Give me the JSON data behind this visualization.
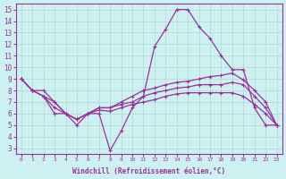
{
  "xlabel": "Windchill (Refroidissement éolien,°C)",
  "xlim": [
    -0.5,
    23.5
  ],
  "ylim": [
    2.5,
    15.5
  ],
  "yticks": [
    3,
    4,
    5,
    6,
    7,
    8,
    9,
    10,
    11,
    12,
    13,
    14,
    15
  ],
  "xticks": [
    0,
    1,
    2,
    3,
    4,
    5,
    6,
    7,
    8,
    9,
    10,
    11,
    12,
    13,
    14,
    15,
    16,
    17,
    18,
    19,
    20,
    21,
    22,
    23
  ],
  "background_color": "#cdf0f0",
  "grid_color": "#b0d8d0",
  "line_color": "#993399",
  "series": {
    "line1": [
      9.0,
      8.0,
      8.0,
      7.0,
      6.0,
      5.5,
      6.0,
      6.0,
      2.8,
      4.5,
      6.5,
      7.5,
      11.8,
      13.3,
      15.0,
      15.0,
      13.5,
      12.5,
      11.0,
      9.8,
      9.8,
      6.5,
      5.0,
      5.0
    ],
    "line2": [
      9.0,
      8.0,
      7.5,
      7.0,
      6.0,
      5.5,
      6.0,
      6.5,
      6.5,
      7.0,
      7.5,
      8.0,
      8.2,
      8.5,
      8.7,
      8.8,
      9.0,
      9.2,
      9.3,
      9.5,
      8.9,
      8.0,
      7.0,
      5.0
    ],
    "line3": [
      9.0,
      8.0,
      7.5,
      6.5,
      6.0,
      5.5,
      6.0,
      6.5,
      6.5,
      6.8,
      7.0,
      7.5,
      7.8,
      8.0,
      8.2,
      8.3,
      8.5,
      8.5,
      8.5,
      8.7,
      8.5,
      7.5,
      6.5,
      5.0
    ],
    "line4": [
      9.0,
      8.0,
      7.5,
      6.0,
      6.0,
      5.0,
      6.0,
      6.3,
      6.2,
      6.5,
      6.8,
      7.0,
      7.2,
      7.5,
      7.7,
      7.8,
      7.8,
      7.8,
      7.8,
      7.8,
      7.5,
      6.8,
      6.0,
      5.0
    ]
  }
}
